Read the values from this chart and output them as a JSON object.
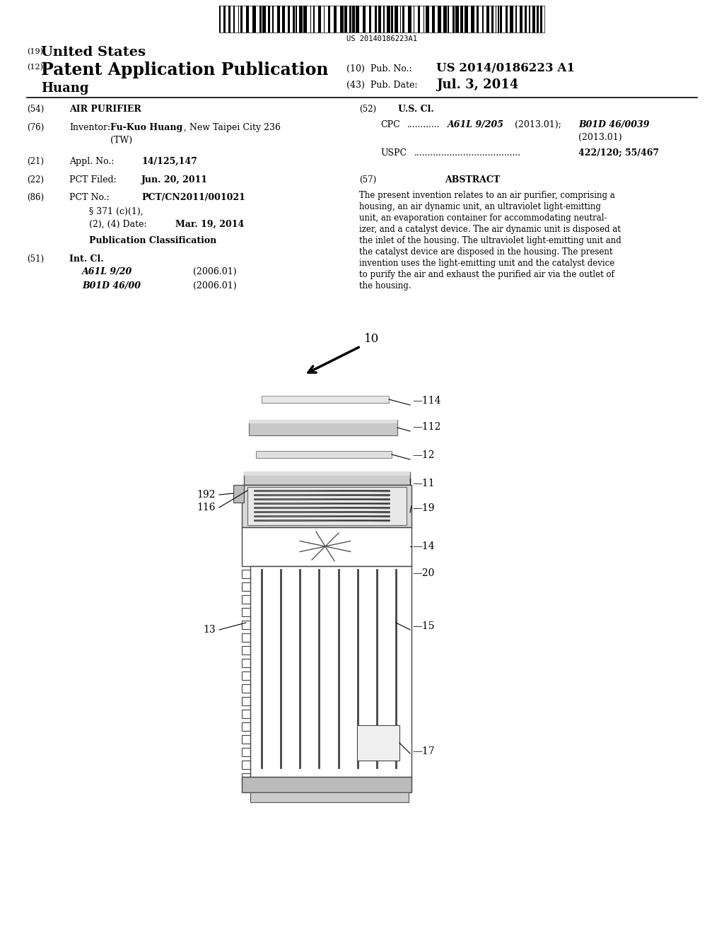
{
  "bg_color": "#ffffff",
  "barcode_text": "US 20140186223A1",
  "title_19_small": "(19)",
  "title_19_large": "United States",
  "title_12_small": "(12)",
  "title_12_large": "Patent Application Publication",
  "pub_no_label": "(10)  Pub. No.:",
  "pub_no_value": "US 2014/0186223 A1",
  "pub_date_label": "(43)  Pub. Date:",
  "pub_date_value": "Jul. 3, 2014",
  "inventor_name": "Huang",
  "abstract": "The present invention relates to an air purifier, comprising a housing, an air dynamic unit, an ultraviolet light-emitting unit, an evaporation container for accommodating neutralizer, and a catalyst device. The air dynamic unit is disposed at the inlet of the housing. The ultraviolet light-emitting unit and the catalyst device are disposed in the housing. The present invention uses the light-emitting unit and the catalyst device to purify the air and exhaust the purified air via the outlet of the housing."
}
